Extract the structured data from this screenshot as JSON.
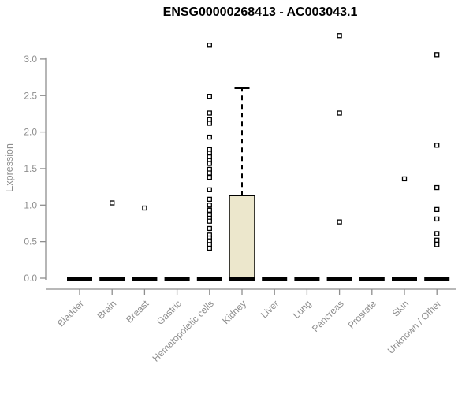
{
  "chart_data": {
    "type": "boxplot",
    "title": "ENSG00000268413 - AC003043.1",
    "xlabel": "",
    "ylabel": "Expression",
    "ylim": [
      0,
      3.35
    ],
    "yticks": [
      0.0,
      0.5,
      1.0,
      1.5,
      2.0,
      2.5,
      3.0
    ],
    "grid": false,
    "legend": "none",
    "categories": [
      "Bladder",
      "Brain",
      "Breast",
      "Gastric",
      "Hematopoietic cells",
      "Kidney",
      "Liver",
      "Lung",
      "Pancreas",
      "Prostate",
      "Skin",
      "Unknown / Other"
    ],
    "boxes": [
      {
        "category": "Bladder",
        "q1": 0,
        "median": 0,
        "q3": 0,
        "whisker_low": 0,
        "whisker_high": 0,
        "outliers": []
      },
      {
        "category": "Brain",
        "q1": 0,
        "median": 0,
        "q3": 0,
        "whisker_low": 0,
        "whisker_high": 0,
        "outliers": [
          1.03
        ]
      },
      {
        "category": "Breast",
        "q1": 0,
        "median": 0,
        "q3": 0,
        "whisker_low": 0,
        "whisker_high": 0,
        "outliers": [
          0.96
        ]
      },
      {
        "category": "Gastric",
        "q1": 0,
        "median": 0,
        "q3": 0,
        "whisker_low": 0,
        "whisker_high": 0,
        "outliers": []
      },
      {
        "category": "Hematopoietic cells",
        "q1": 0,
        "median": 0,
        "q3": 0,
        "whisker_low": 0,
        "whisker_high": 0,
        "outliers": [
          3.19,
          2.49,
          2.26,
          2.17,
          2.12,
          1.93,
          1.76,
          1.71,
          1.66,
          1.61,
          1.57,
          1.49,
          1.44,
          1.38,
          1.21,
          1.08,
          1.0,
          0.93,
          0.87,
          0.82,
          0.78,
          0.68,
          0.59,
          0.55,
          0.51,
          0.46,
          0.41
        ]
      },
      {
        "category": "Kidney",
        "q1": 0,
        "median": 0,
        "q3": 1.13,
        "whisker_low": 0,
        "whisker_high": 2.6,
        "outliers": []
      },
      {
        "category": "Liver",
        "q1": 0,
        "median": 0,
        "q3": 0,
        "whisker_low": 0,
        "whisker_high": 0,
        "outliers": []
      },
      {
        "category": "Lung",
        "q1": 0,
        "median": 0,
        "q3": 0,
        "whisker_low": 0,
        "whisker_high": 0,
        "outliers": []
      },
      {
        "category": "Pancreas",
        "q1": 0,
        "median": 0,
        "q3": 0,
        "whisker_low": 0,
        "whisker_high": 0,
        "outliers": [
          3.32,
          2.26,
          0.77
        ]
      },
      {
        "category": "Prostate",
        "q1": 0,
        "median": 0,
        "q3": 0,
        "whisker_low": 0,
        "whisker_high": 0,
        "outliers": []
      },
      {
        "category": "Skin",
        "q1": 0,
        "median": 0,
        "q3": 0,
        "whisker_low": 0,
        "whisker_high": 0,
        "outliers": [
          1.36
        ]
      },
      {
        "category": "Unknown / Other",
        "q1": 0,
        "median": 0,
        "q3": 0,
        "whisker_low": 0,
        "whisker_high": 0,
        "outliers": [
          3.06,
          1.82,
          1.24,
          0.94,
          0.81,
          0.61,
          0.52,
          0.46
        ]
      }
    ],
    "colors": {
      "box_fill": "#ECE7CC",
      "box_border": "#000000",
      "median": "#000000",
      "whisker": "#000000",
      "point_stroke": "#000000",
      "point_fill": "#ffffff",
      "axis": "#8e8e8e",
      "tick_label": "#8e8e8e",
      "title": "#000000",
      "background": "#ffffff"
    }
  }
}
